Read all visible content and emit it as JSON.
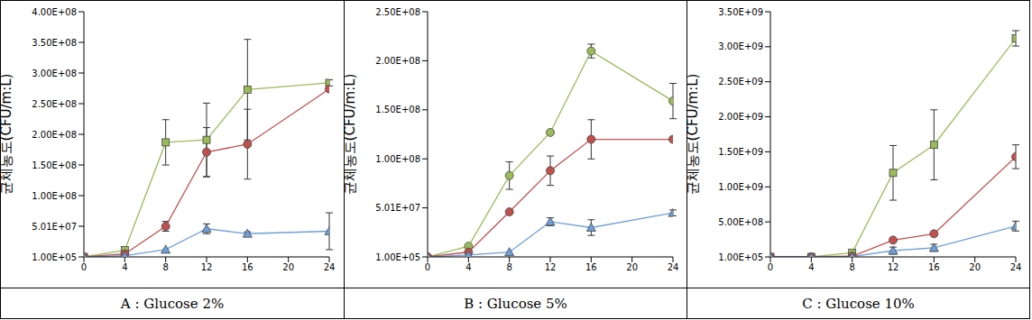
{
  "chart_data": [
    {
      "type": "line",
      "title": "A : Glucose 2%",
      "y_label": "균체농도(CFU/m:L)",
      "grid": false,
      "x": [
        0,
        4,
        8,
        12,
        16,
        24
      ],
      "xlim": [
        0,
        24
      ],
      "xticks": [
        0,
        4,
        8,
        12,
        16,
        20,
        24
      ],
      "ylim": [
        100000,
        400100000
      ],
      "yticks": [
        {
          "value": 100000,
          "label": "1.00E+05"
        },
        {
          "value": 50100000,
          "label": "5.01E+07"
        },
        {
          "value": 100100000,
          "label": "1.00E+08"
        },
        {
          "value": 150100000,
          "label": "1.50E+08"
        },
        {
          "value": 200100000,
          "label": "2.00E+08"
        },
        {
          "value": 250100000,
          "label": "2.50E+08"
        },
        {
          "value": 300100000,
          "label": "3.00E+08"
        },
        {
          "value": 350100000,
          "label": "3.50E+08"
        },
        {
          "value": 400100000,
          "label": "4.00E+08"
        }
      ],
      "series": [
        {
          "color": "#9BBB59",
          "marker": "square",
          "values": [
            100000,
            11000000,
            187000000,
            191000000,
            273000000,
            284000000
          ],
          "errors": [
            0,
            0,
            37000000,
            60000000,
            82000000,
            5000000
          ]
        },
        {
          "color": "#C0504D",
          "marker": "circle",
          "values": [
            100000,
            5000000,
            50000000,
            171000000,
            184000000,
            274000000
          ],
          "errors": [
            0,
            0,
            8000000,
            40000000,
            57000000,
            0
          ]
        },
        {
          "color": "#6F9FD8",
          "marker": "triangle",
          "values": [
            100000,
            2000000,
            12000000,
            46000000,
            38000000,
            42000000
          ],
          "errors": [
            0,
            0,
            0,
            8000000,
            3000000,
            30000000
          ]
        }
      ]
    },
    {
      "type": "line",
      "title": "B : Glucose 5%",
      "y_label": "균체농도(CFU/m:L)",
      "grid": false,
      "x": [
        0,
        4,
        8,
        12,
        16,
        24
      ],
      "xlim": [
        0,
        24
      ],
      "xticks": [
        0,
        4,
        8,
        12,
        16,
        20,
        24
      ],
      "ylim": [
        100000,
        250100000
      ],
      "yticks": [
        {
          "value": 100000,
          "label": "1.00E+05"
        },
        {
          "value": 50100000,
          "label": "5.01E+07"
        },
        {
          "value": 100100000,
          "label": "1.00E+08"
        },
        {
          "value": 150100000,
          "label": "1.50E+08"
        },
        {
          "value": 200100000,
          "label": "2.00E+08"
        },
        {
          "value": 250100000,
          "label": "2.50E+08"
        }
      ],
      "series": [
        {
          "color": "#9BBB59",
          "marker": "circle",
          "values": [
            100000,
            11000000,
            83000000,
            127000000,
            210000000,
            159000000
          ],
          "errors": [
            0,
            0,
            14000000,
            2000000,
            7000000,
            18000000
          ]
        },
        {
          "color": "#C0504D",
          "marker": "circle",
          "values": [
            100000,
            5000000,
            46000000,
            88000000,
            120000000,
            120000000
          ],
          "errors": [
            0,
            0,
            0,
            15000000,
            20000000,
            0
          ]
        },
        {
          "color": "#6F9FD8",
          "marker": "triangle",
          "values": [
            100000,
            2000000,
            5000000,
            36000000,
            30000000,
            45000000
          ],
          "errors": [
            0,
            0,
            0,
            4000000,
            8000000,
            3000000
          ]
        }
      ]
    },
    {
      "type": "line",
      "title": "C : Glucose 10%",
      "y_label": "균체농도(CFU/m:L)",
      "grid": false,
      "x": [
        0,
        4,
        8,
        12,
        16,
        24
      ],
      "xlim": [
        0,
        24
      ],
      "xticks": [
        0,
        4,
        8,
        12,
        16,
        20,
        24
      ],
      "ylim": [
        100000,
        3500100000
      ],
      "yticks": [
        {
          "value": 100000,
          "label": "1.00E+05"
        },
        {
          "value": 500100000,
          "label": "5.00E+08"
        },
        {
          "value": 1000100000,
          "label": "1.00E+09"
        },
        {
          "value": 1500100000,
          "label": "1.50E+09"
        },
        {
          "value": 2000100000,
          "label": "2.00E+09"
        },
        {
          "value": 2500100000,
          "label": "2.50E+09"
        },
        {
          "value": 3000100000,
          "label": "3.00E+09"
        },
        {
          "value": 3500100000,
          "label": "3.50E+09"
        }
      ],
      "series": [
        {
          "color": "#9BBB59",
          "marker": "square",
          "values": [
            100000,
            100000,
            60000000,
            1200000000,
            1600000000,
            3120000000
          ],
          "errors": [
            0,
            0,
            0,
            390000000,
            500000000,
            110000000
          ]
        },
        {
          "color": "#C0504D",
          "marker": "circle",
          "values": [
            100000,
            100000,
            10000000,
            240000000,
            330000000,
            1430000000
          ],
          "errors": [
            0,
            0,
            0,
            0,
            0,
            170000000
          ]
        },
        {
          "color": "#6F9FD8",
          "marker": "triangle",
          "values": [
            100000,
            100000,
            5000000,
            90000000,
            130000000,
            440000000
          ],
          "errors": [
            0,
            0,
            0,
            50000000,
            50000000,
            70000000
          ]
        }
      ]
    }
  ]
}
